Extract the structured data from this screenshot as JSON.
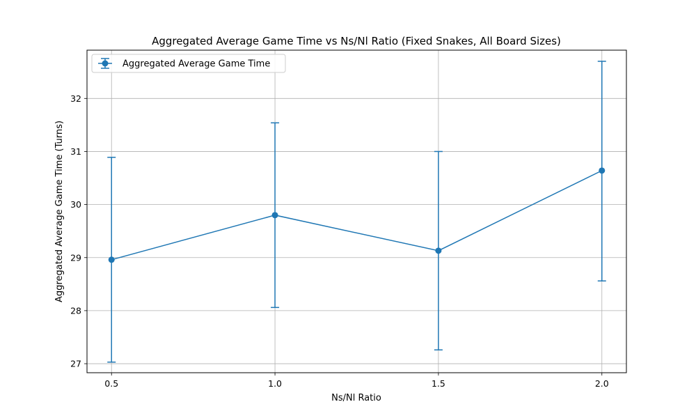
{
  "chart_data": {
    "type": "line",
    "title": "Aggregated Average Game Time vs Ns/Nl Ratio (Fixed Snakes, All Board Sizes)",
    "xlabel": "Ns/Nl Ratio",
    "ylabel": "Aggregated Average Game Time (Turns)",
    "x": [
      0.5,
      1.0,
      1.5,
      2.0
    ],
    "x_tick_labels": [
      "0.5",
      "1.0",
      "1.5",
      "2.0"
    ],
    "y_ticks": [
      27,
      28,
      29,
      30,
      31,
      32
    ],
    "y_tick_labels": [
      "27",
      "28",
      "29",
      "30",
      "31",
      "32"
    ],
    "xlim": [
      0.425,
      2.075
    ],
    "ylim": [
      26.83,
      32.91
    ],
    "grid": true,
    "legend_position": "top-left",
    "series": [
      {
        "name": "Aggregated Average Game Time",
        "color": "#1f77b4",
        "marker": "circle",
        "values": [
          28.96,
          29.8,
          29.13,
          30.64
        ],
        "error_low": [
          27.03,
          28.06,
          27.26,
          28.56
        ],
        "error_high": [
          30.89,
          31.54,
          31.0,
          32.7
        ]
      }
    ]
  }
}
